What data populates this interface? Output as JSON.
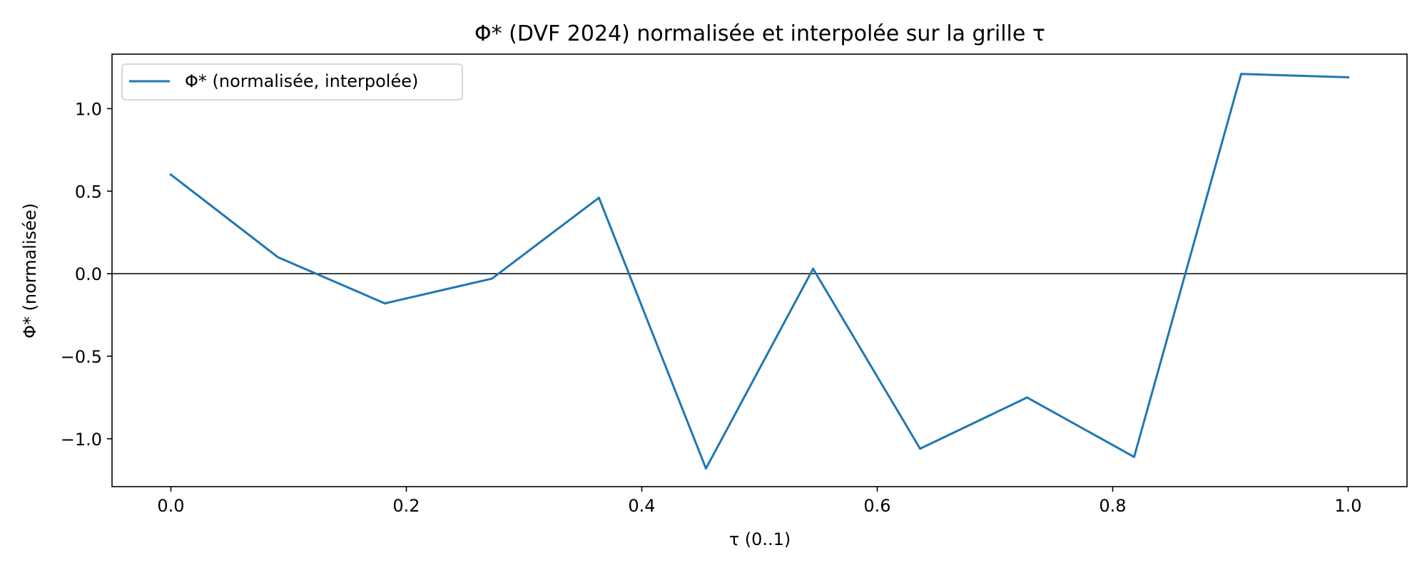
{
  "chart_data": {
    "type": "line",
    "title": "Φ* (DVF 2024) normalisée et interpolée sur la grille τ",
    "xlabel": "τ (0..1)",
    "ylabel": "Φ* (normalisée)",
    "xlim": [
      -0.05,
      1.05
    ],
    "ylim": [
      -1.29,
      1.33
    ],
    "xticks": [
      0.0,
      0.2,
      0.4,
      0.6,
      0.8,
      1.0
    ],
    "xtick_labels": [
      "0.0",
      "0.2",
      "0.4",
      "0.6",
      "0.8",
      "1.0"
    ],
    "yticks": [
      -1.0,
      -0.5,
      0.0,
      0.5,
      1.0
    ],
    "ytick_labels": [
      "−1.0",
      "−0.5",
      "0.0",
      "0.5",
      "1.0"
    ],
    "grid": false,
    "legend_position": "top-left",
    "reference_line_y": 0.0,
    "series": [
      {
        "name": "Φ* (normalisée, interpolée)",
        "color": "#1f77b4",
        "x": [
          0.0,
          0.0909,
          0.1818,
          0.2727,
          0.3636,
          0.4545,
          0.5455,
          0.6364,
          0.7273,
          0.8182,
          0.9091,
          1.0
        ],
        "y": [
          0.6,
          0.1,
          -0.18,
          -0.03,
          0.46,
          -1.18,
          0.03,
          -1.06,
          -0.75,
          -1.11,
          1.21,
          1.19
        ]
      }
    ]
  }
}
